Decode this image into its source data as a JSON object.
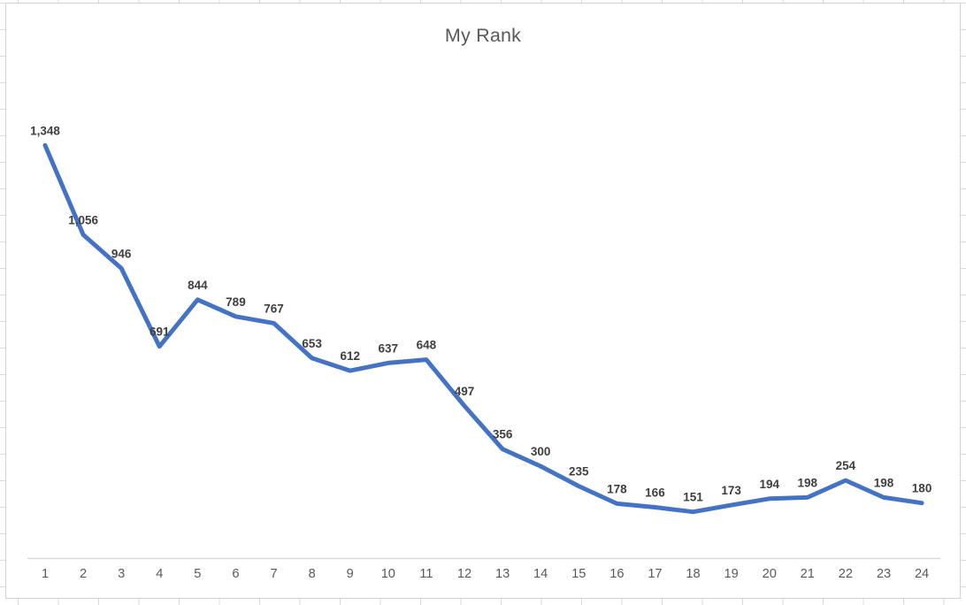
{
  "window": {
    "background": "#ffffff",
    "grid_color": "#d8d8d8",
    "frame_border_color": "#d2d2d2"
  },
  "chart_data": {
    "type": "line",
    "title": "My Rank",
    "categories": [
      1,
      2,
      3,
      4,
      5,
      6,
      7,
      8,
      9,
      10,
      11,
      12,
      13,
      14,
      15,
      16,
      17,
      18,
      19,
      20,
      21,
      22,
      23,
      24
    ],
    "values": [
      1348,
      1056,
      946,
      691,
      844,
      789,
      767,
      653,
      612,
      637,
      648,
      497,
      356,
      300,
      235,
      178,
      166,
      151,
      173,
      194,
      198,
      254,
      198,
      180
    ],
    "data_labels": [
      "1,348",
      "1,056",
      "946",
      "691",
      "844",
      "789",
      "767",
      "653",
      "612",
      "637",
      "648",
      "497",
      "356",
      "300",
      "235",
      "178",
      "166",
      "151",
      "173",
      "194",
      "198",
      "254",
      "198",
      "180"
    ],
    "xlabel": "",
    "ylabel": "",
    "ylim": [
      0,
      1600
    ],
    "grid": "off",
    "legend": "none",
    "label_position": "above",
    "series_color": "#4472C4",
    "series_width": 5,
    "axis_line_color": "#d9d9d9",
    "title_color": "#595959",
    "tick_label_color": "#595959",
    "data_label_color": "#3f3f3f"
  }
}
